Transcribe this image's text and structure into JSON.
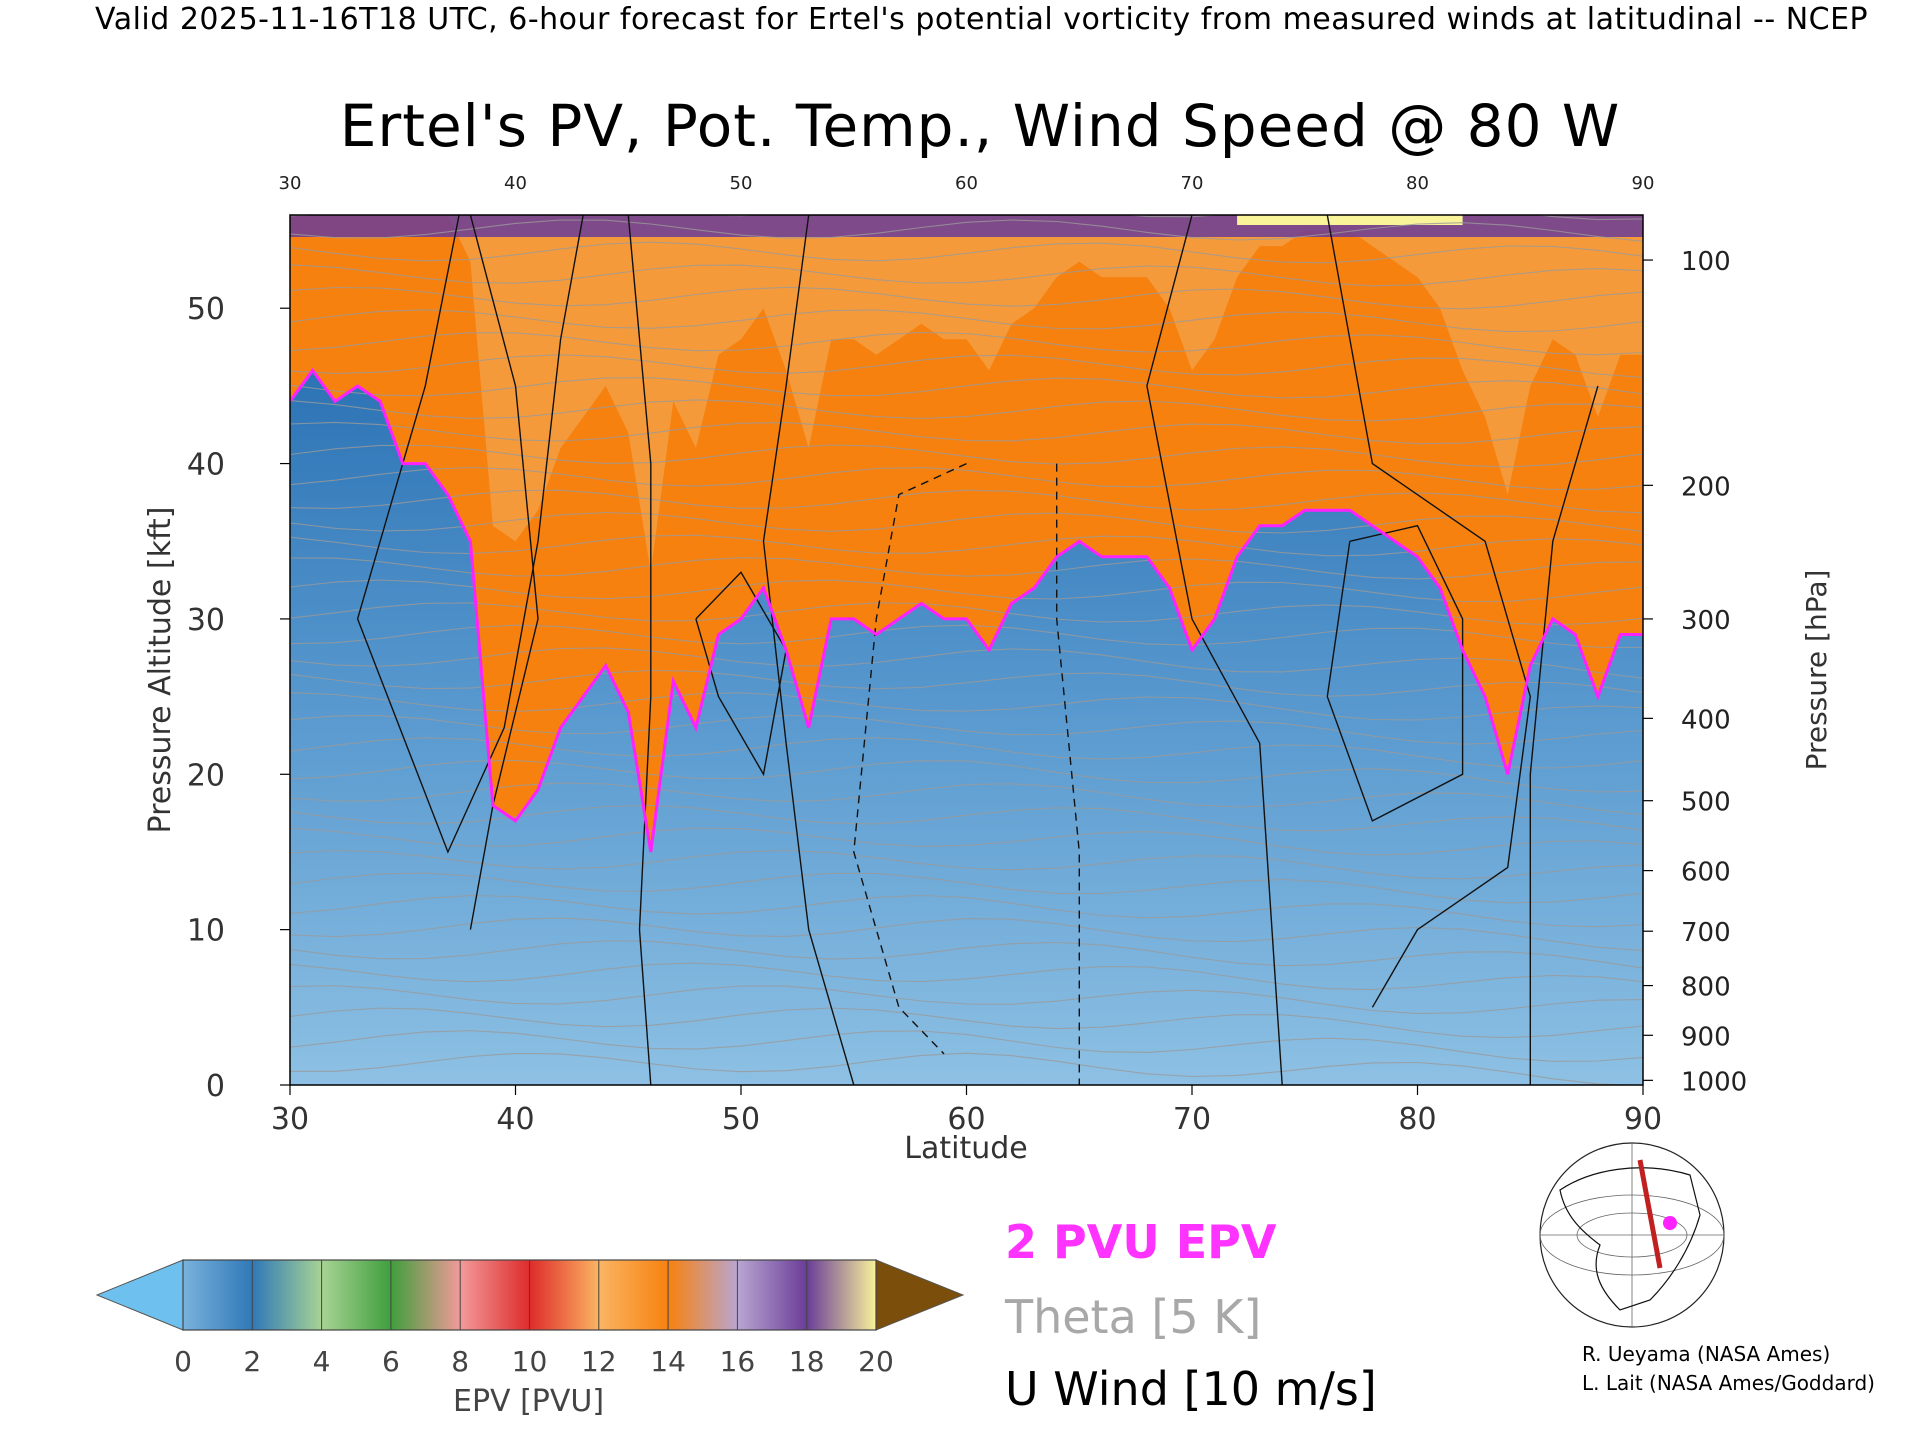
{
  "header": "Valid 2025-11-16T18 UTC, 6-hour forecast for Ertel's potential vorticity from measured winds at latitudinal -- NCEP",
  "chart_data": {
    "type": "heatmap",
    "title": "Ertel's PV, Pot. Temp., Wind Speed @ 80 W",
    "xlabel": "Latitude",
    "ylabel": "Pressure Altitude [kft]",
    "y2label": "Pressure [hPa]",
    "xlim": [
      30,
      90
    ],
    "ylim": [
      0,
      56
    ],
    "x_ticks": [
      30,
      40,
      50,
      60,
      70,
      80,
      90
    ],
    "y_ticks": [
      0,
      10,
      20,
      30,
      40,
      50
    ],
    "pressure_ticks": [
      {
        "hPa": "100",
        "kft": 53.1
      },
      {
        "hPa": "200",
        "kft": 38.6
      },
      {
        "hPa": "300",
        "kft": 30.0
      },
      {
        "hPa": "400",
        "kft": 23.6
      },
      {
        "hPa": "500",
        "kft": 18.3
      },
      {
        "hPa": "600",
        "kft": 13.8
      },
      {
        "hPa": "700",
        "kft": 9.9
      },
      {
        "hPa": "800",
        "kft": 6.4
      },
      {
        "hPa": "900",
        "kft": 3.2
      },
      {
        "hPa": "1000",
        "kft": 0.3
      }
    ],
    "tropopause_2pvu": {
      "lat": [
        30,
        31,
        32,
        33,
        34,
        35,
        36,
        37,
        38,
        39,
        40,
        41,
        42,
        43,
        44,
        45,
        46,
        47,
        48,
        49,
        50,
        51,
        52,
        53,
        54,
        55,
        56,
        57,
        58,
        59,
        60,
        61,
        62,
        63,
        64,
        65,
        66,
        67,
        68,
        69,
        70,
        71,
        72,
        73,
        74,
        75,
        76,
        77,
        78,
        79,
        80,
        81,
        82,
        83,
        84,
        85,
        86,
        87,
        88,
        89,
        90
      ],
      "kft": [
        44,
        46,
        44,
        45,
        44,
        40,
        40,
        38,
        35,
        18,
        17,
        19,
        23,
        25,
        27,
        24,
        15,
        26,
        23,
        29,
        30,
        32,
        28,
        23,
        30,
        30,
        29,
        30,
        31,
        30,
        30,
        28,
        31,
        32,
        34,
        35,
        34,
        34,
        34,
        32,
        28,
        30,
        34,
        36,
        36,
        37,
        37,
        37,
        36,
        35,
        34,
        32,
        28,
        25,
        20,
        27,
        30,
        29,
        25,
        29,
        29
      ]
    },
    "colorbar": {
      "label": "EPV [PVU]",
      "ticks": [
        "0",
        "2",
        "4",
        "6",
        "8",
        "10",
        "12",
        "14",
        "16",
        "18",
        "20"
      ],
      "colors": [
        "#7ab2dc",
        "#2f78b8",
        "#a8d494",
        "#3f9e3c",
        "#f39a9a",
        "#de2b2b",
        "#fbb563",
        "#f7810f",
        "#b9a6d2",
        "#6a3c98",
        "#f9f39a"
      ],
      "under_color": "#6ec1ef",
      "over_color": "#7b4f0b"
    },
    "legend": [
      "2 PVU EPV",
      "Theta [5 K]",
      "U Wind [10 m/s]"
    ]
  },
  "credits": [
    "R. Ueyama (NASA Ames)",
    "L. Lait (NASA Ames/Goddard)"
  ]
}
